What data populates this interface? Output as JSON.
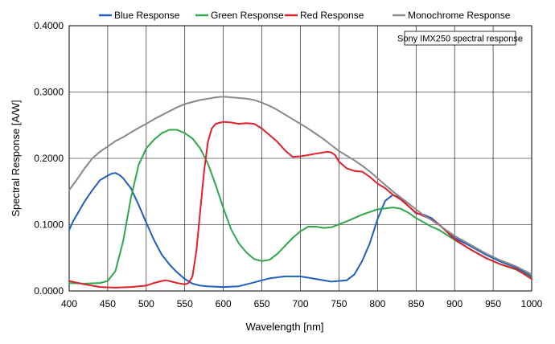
{
  "chart_data": {
    "type": "line",
    "title": "",
    "xlabel": "Wavelength [nm]",
    "ylabel": "Spectral Response [A/W]",
    "xlim": [
      400,
      1000
    ],
    "ylim": [
      0,
      0.4
    ],
    "x_ticks": [
      "400",
      "450",
      "500",
      "550",
      "600",
      "650",
      "700",
      "750",
      "800",
      "850",
      "900",
      "950",
      "1000"
    ],
    "y_ticks": [
      "0.0000",
      "0.1000",
      "0.2000",
      "0.3000",
      "0.4000"
    ],
    "grid": true,
    "legend_position": "top",
    "annotation": "Sony IMX250 spectral response",
    "series": [
      {
        "name": "Blue Response",
        "color": "#1f5fbf",
        "x": [
          400,
          405,
          410,
          420,
          430,
          440,
          450,
          455,
          460,
          465,
          470,
          480,
          490,
          500,
          510,
          520,
          530,
          540,
          550,
          560,
          570,
          580,
          600,
          620,
          640,
          650,
          660,
          680,
          700,
          720,
          740,
          760,
          770,
          780,
          790,
          800,
          810,
          820,
          830,
          840,
          850,
          860,
          870,
          880,
          900,
          920,
          940,
          960,
          980,
          1000
        ],
        "y": [
          0.092,
          0.105,
          0.115,
          0.135,
          0.152,
          0.167,
          0.174,
          0.177,
          0.178,
          0.175,
          0.17,
          0.155,
          0.13,
          0.103,
          0.077,
          0.055,
          0.04,
          0.028,
          0.018,
          0.011,
          0.008,
          0.007,
          0.006,
          0.007,
          0.013,
          0.016,
          0.019,
          0.022,
          0.022,
          0.018,
          0.014,
          0.016,
          0.025,
          0.045,
          0.072,
          0.108,
          0.136,
          0.145,
          0.14,
          0.128,
          0.117,
          0.115,
          0.11,
          0.1,
          0.08,
          0.068,
          0.055,
          0.044,
          0.035,
          0.022
        ]
      },
      {
        "name": "Green Response",
        "color": "#2ea84a",
        "x": [
          400,
          420,
          440,
          450,
          460,
          470,
          480,
          490,
          500,
          510,
          520,
          530,
          540,
          550,
          560,
          570,
          580,
          590,
          600,
          610,
          620,
          630,
          640,
          650,
          660,
          670,
          680,
          690,
          700,
          710,
          720,
          730,
          740,
          760,
          780,
          800,
          820,
          830,
          840,
          850,
          870,
          880,
          900,
          920,
          940,
          960,
          980,
          1000
        ],
        "y": [
          0.012,
          0.011,
          0.012,
          0.015,
          0.03,
          0.075,
          0.14,
          0.19,
          0.215,
          0.228,
          0.238,
          0.243,
          0.243,
          0.238,
          0.23,
          0.215,
          0.192,
          0.16,
          0.125,
          0.093,
          0.072,
          0.058,
          0.048,
          0.045,
          0.047,
          0.056,
          0.068,
          0.08,
          0.09,
          0.097,
          0.097,
          0.095,
          0.096,
          0.105,
          0.115,
          0.123,
          0.126,
          0.124,
          0.118,
          0.11,
          0.097,
          0.092,
          0.077,
          0.063,
          0.05,
          0.04,
          0.032,
          0.02
        ]
      },
      {
        "name": "Red Response",
        "color": "#e0212b",
        "x": [
          400,
          420,
          440,
          460,
          480,
          500,
          510,
          520,
          525,
          530,
          540,
          550,
          555,
          560,
          565,
          570,
          575,
          580,
          585,
          590,
          600,
          610,
          620,
          630,
          640,
          650,
          660,
          670,
          680,
          690,
          700,
          710,
          720,
          730,
          735,
          740,
          745,
          750,
          760,
          770,
          780,
          790,
          800,
          810,
          820,
          830,
          840,
          850,
          860,
          870,
          880,
          900,
          920,
          940,
          960,
          980,
          1000
        ],
        "y": [
          0.015,
          0.01,
          0.006,
          0.005,
          0.006,
          0.008,
          0.012,
          0.015,
          0.016,
          0.015,
          0.012,
          0.01,
          0.012,
          0.022,
          0.06,
          0.12,
          0.18,
          0.225,
          0.245,
          0.252,
          0.255,
          0.254,
          0.252,
          0.253,
          0.252,
          0.245,
          0.235,
          0.225,
          0.212,
          0.202,
          0.203,
          0.205,
          0.207,
          0.209,
          0.21,
          0.209,
          0.205,
          0.195,
          0.185,
          0.181,
          0.18,
          0.172,
          0.162,
          0.155,
          0.145,
          0.138,
          0.128,
          0.118,
          0.113,
          0.108,
          0.1,
          0.078,
          0.063,
          0.05,
          0.04,
          0.033,
          0.018
        ]
      },
      {
        "name": "Monochrome Response",
        "color": "#888888",
        "x": [
          400,
          410,
          420,
          430,
          440,
          450,
          460,
          470,
          480,
          490,
          500,
          510,
          520,
          530,
          540,
          550,
          560,
          570,
          580,
          590,
          600,
          610,
          620,
          630,
          640,
          650,
          660,
          670,
          680,
          690,
          700,
          710,
          720,
          730,
          740,
          750,
          760,
          770,
          780,
          790,
          800,
          810,
          820,
          830,
          840,
          850,
          860,
          870,
          880,
          900,
          920,
          940,
          960,
          980,
          1000
        ],
        "y": [
          0.152,
          0.168,
          0.185,
          0.2,
          0.21,
          0.218,
          0.226,
          0.232,
          0.239,
          0.246,
          0.252,
          0.259,
          0.265,
          0.271,
          0.277,
          0.282,
          0.285,
          0.288,
          0.29,
          0.292,
          0.293,
          0.292,
          0.291,
          0.29,
          0.288,
          0.284,
          0.279,
          0.273,
          0.266,
          0.259,
          0.252,
          0.245,
          0.237,
          0.229,
          0.22,
          0.211,
          0.204,
          0.197,
          0.189,
          0.18,
          0.17,
          0.16,
          0.15,
          0.141,
          0.132,
          0.123,
          0.114,
          0.107,
          0.099,
          0.083,
          0.07,
          0.057,
          0.046,
          0.037,
          0.025
        ]
      }
    ]
  }
}
